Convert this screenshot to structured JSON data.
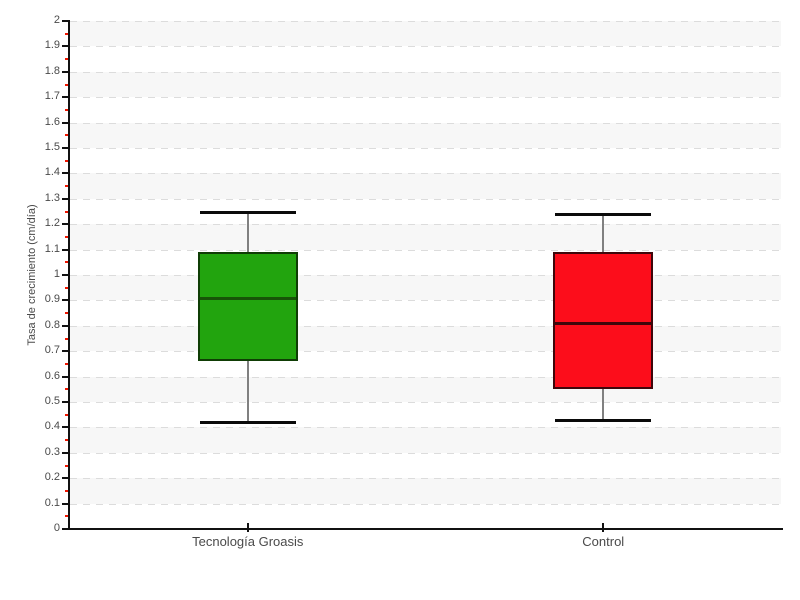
{
  "chart_data": {
    "type": "boxplot",
    "title": "",
    "ylabel": "Tasa de crecimiento (cm/día)",
    "xlabel": "",
    "ylim": [
      0,
      2
    ],
    "ytick_step": 0.1,
    "minor_tick_step": 0.05,
    "yticks": [
      "0",
      "0.1",
      "0.2",
      "0.3",
      "0.4",
      "0.5",
      "0.6",
      "0.7",
      "0.8",
      "0.9",
      "1",
      "1.1",
      "1.2",
      "1.3",
      "1.4",
      "1.5",
      "1.6",
      "1.7",
      "1.8",
      "1.9",
      "2"
    ],
    "categories": [
      "Tecnología Groasis",
      "Control"
    ],
    "legend": "none",
    "grid": {
      "horizontal_dashed": true,
      "alternating_bands": true
    },
    "series": [
      {
        "name": "Tecnología Groasis",
        "min": 0.42,
        "q1": 0.66,
        "median": 0.91,
        "q3": 1.09,
        "max": 1.25,
        "fill": "#22a40e",
        "border": "#0f3d05",
        "median_color": "#175407"
      },
      {
        "name": "Control",
        "min": 0.43,
        "q1": 0.55,
        "median": 0.81,
        "q3": 1.09,
        "max": 1.24,
        "fill": "#fc0d1b",
        "border": "#3f060b",
        "median_color": "#3f060b"
      }
    ]
  },
  "colors": {
    "background": "#ffffff",
    "band": "#f7f7f7",
    "gridline": "#dcdcdc",
    "axis": "#111111",
    "tick_label": "#4a4a4a",
    "category_label": "#4a4a4a",
    "minor_tick": "#ee1500",
    "whisker_line": "#808080",
    "whisker_cap": "#0a0a0a"
  }
}
